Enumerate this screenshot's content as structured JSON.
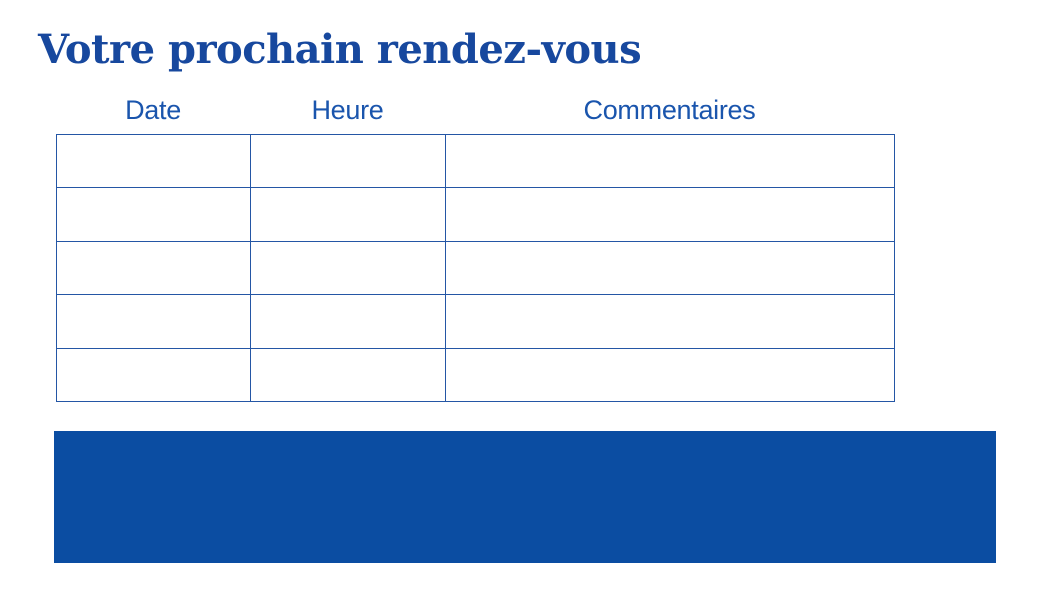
{
  "page": {
    "title": "Votre prochain rendez-vous",
    "background": "#ffffff"
  },
  "colors": {
    "title_blue": "#17489E",
    "header_blue": "#1A55AD",
    "border_blue": "#2456A5",
    "banner_blue": "#0B4DA2"
  },
  "table": {
    "columns": [
      {
        "label": "Date"
      },
      {
        "label": "Heure"
      },
      {
        "label": "Commentaires"
      }
    ],
    "rows": [
      [
        "",
        "",
        ""
      ],
      [
        "",
        "",
        ""
      ],
      [
        "",
        "",
        ""
      ],
      [
        "",
        "",
        ""
      ],
      [
        "",
        "",
        ""
      ]
    ]
  }
}
